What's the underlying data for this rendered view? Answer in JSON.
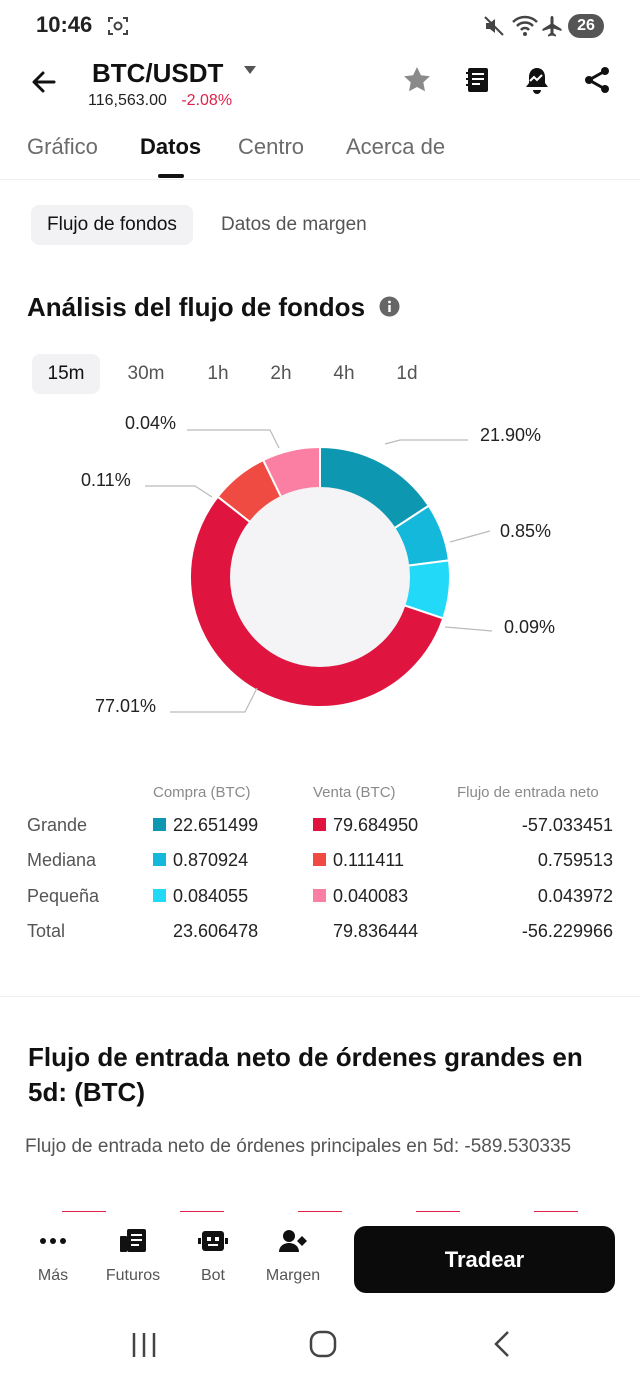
{
  "status_bar": {
    "time": "10:46",
    "battery": "26"
  },
  "header": {
    "pair": "BTC/USDT",
    "price": "116,563.00",
    "change": "-2.08%"
  },
  "tabs": [
    "Gráfico",
    "Datos",
    "Centro",
    "Acerca de"
  ],
  "subtabs": [
    "Flujo de fondos",
    "Datos de margen"
  ],
  "section1": {
    "title": "Análisis del flujo de fondos"
  },
  "timeframes": [
    "15m",
    "30m",
    "1h",
    "2h",
    "4h",
    "1d"
  ],
  "chart_data": {
    "type": "pie",
    "donut": true,
    "slices": [
      {
        "label": "21.90%",
        "value": 21.9,
        "color": "#0e97b1"
      },
      {
        "label": "0.85%",
        "value": 0.85,
        "color": "#14b8da"
      },
      {
        "label": "0.09%",
        "value": 0.09,
        "color": "#22d9f8"
      },
      {
        "label": "77.01%",
        "value": 77.01,
        "color": "#e0153f"
      },
      {
        "label": "0.11%",
        "value": 0.11,
        "color": "#f04b42"
      },
      {
        "label": "0.04%",
        "value": 0.04,
        "color": "#fb7fa3"
      }
    ]
  },
  "table": {
    "headers": [
      "Compra (BTC)",
      "Venta (BTC)",
      "Flujo de entrada neto"
    ],
    "rows": [
      {
        "label": "Grande",
        "buy": "22.651499",
        "sell": "79.684950",
        "net": "-57.033451",
        "buy_color": "#0e97b1",
        "sell_color": "#e0153f"
      },
      {
        "label": "Mediana",
        "buy": "0.870924",
        "sell": "0.111411",
        "net": "0.759513",
        "buy_color": "#14b8da",
        "sell_color": "#f04b42"
      },
      {
        "label": "Pequeña",
        "buy": "0.084055",
        "sell": "0.040083",
        "net": "0.043972",
        "buy_color": "#22d9f8",
        "sell_color": "#fb7fa3"
      },
      {
        "label": "Total",
        "buy": "23.606478",
        "sell": "79.836444",
        "net": "-56.229966"
      }
    ]
  },
  "section2": {
    "title_line1": "Flujo de entrada neto de órdenes grandes en",
    "title_line2": "5d: (BTC)",
    "note": "Flujo de entrada neto de órdenes principales en 5d: -589.530335"
  },
  "bottom_nav": {
    "items": [
      {
        "label": "Más",
        "icon": "more-dots-icon"
      },
      {
        "label": "Futuros",
        "icon": "futures-icon"
      },
      {
        "label": "Bot",
        "icon": "bot-icon"
      },
      {
        "label": "Margen",
        "icon": "margin-icon"
      }
    ],
    "trade_label": "Tradear"
  }
}
